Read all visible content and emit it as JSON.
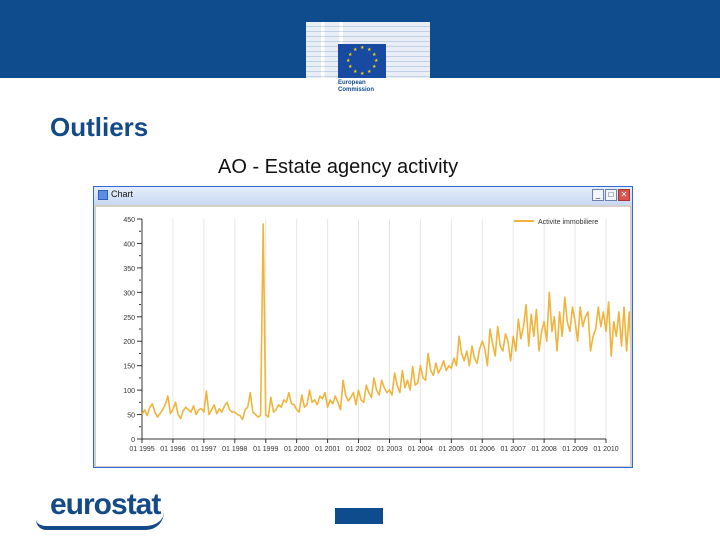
{
  "logo": {
    "commission_text_1": "European",
    "commission_text_2": "Commission",
    "eurostat_text": "eurostat"
  },
  "slide": {
    "title": "Outliers",
    "subtitle": "AO - Estate agency activity"
  },
  "window": {
    "title": "Chart",
    "minimize_glyph": "_",
    "maximize_glyph": "□",
    "close_glyph": "✕"
  },
  "colors": {
    "header": "#0f4c8d",
    "title": "#134a87",
    "series": "#f0b43c",
    "grid": "#e6e6e6"
  },
  "chart_data": {
    "type": "line",
    "ylim": [
      0,
      450
    ],
    "yticks": [
      0,
      50,
      100,
      150,
      200,
      250,
      300,
      350,
      400,
      450
    ],
    "ytick_labels": [
      "0",
      "50",
      "100",
      "150",
      "200",
      "250",
      "300",
      "350",
      "400",
      "450"
    ],
    "xtick_labels": [
      "01 1995",
      "01 1996",
      "01 1997",
      "01 1998",
      "01 1999",
      "01 2000",
      "01 2001",
      "01 2002",
      "01 2003",
      "01 2004",
      "01 2005",
      "01 2006",
      "01 2007",
      "01 2008",
      "01 2009",
      "01 2010"
    ],
    "x_start_year": 1995,
    "legend": "top-right",
    "grid": true,
    "series": [
      {
        "name": "Activite immobiliere",
        "values": [
          50,
          60,
          48,
          65,
          72,
          55,
          45,
          52,
          60,
          70,
          88,
          52,
          60,
          75,
          50,
          42,
          58,
          65,
          60,
          55,
          68,
          50,
          60,
          62,
          55,
          98,
          50,
          60,
          70,
          52,
          62,
          55,
          68,
          75,
          60,
          55,
          55,
          50,
          48,
          40,
          60,
          65,
          95,
          55,
          50,
          45,
          48,
          440,
          50,
          45,
          85,
          55,
          60,
          70,
          65,
          80,
          75,
          95,
          72,
          70,
          60,
          55,
          90,
          65,
          70,
          100,
          75,
          80,
          70,
          88,
          82,
          95,
          65,
          80,
          72,
          88,
          75,
          60,
          120,
          90,
          78,
          85,
          95,
          70,
          100,
          80,
          75,
          110,
          95,
          85,
          125,
          100,
          90,
          120,
          105,
          95,
          100,
          90,
          135,
          110,
          95,
          140,
          105,
          120,
          100,
          148,
          110,
          115,
          150,
          125,
          120,
          175,
          140,
          130,
          155,
          135,
          145,
          160,
          140,
          150,
          145,
          165,
          150,
          210,
          175,
          160,
          180,
          150,
          190,
          165,
          155,
          185,
          200,
          185,
          150,
          225,
          195,
          170,
          230,
          190,
          180,
          215,
          200,
          160,
          210,
          180,
          245,
          205,
          230,
          275,
          190,
          255,
          210,
          265,
          180,
          220,
          240,
          200,
          300,
          220,
          250,
          180,
          260,
          210,
          290,
          240,
          220,
          270,
          240,
          200,
          270,
          230,
          250,
          260,
          180,
          210,
          225,
          270,
          230,
          260,
          220,
          280,
          170,
          240,
          210,
          260,
          190,
          270,
          180,
          260,
          150,
          230
        ]
      }
    ]
  }
}
